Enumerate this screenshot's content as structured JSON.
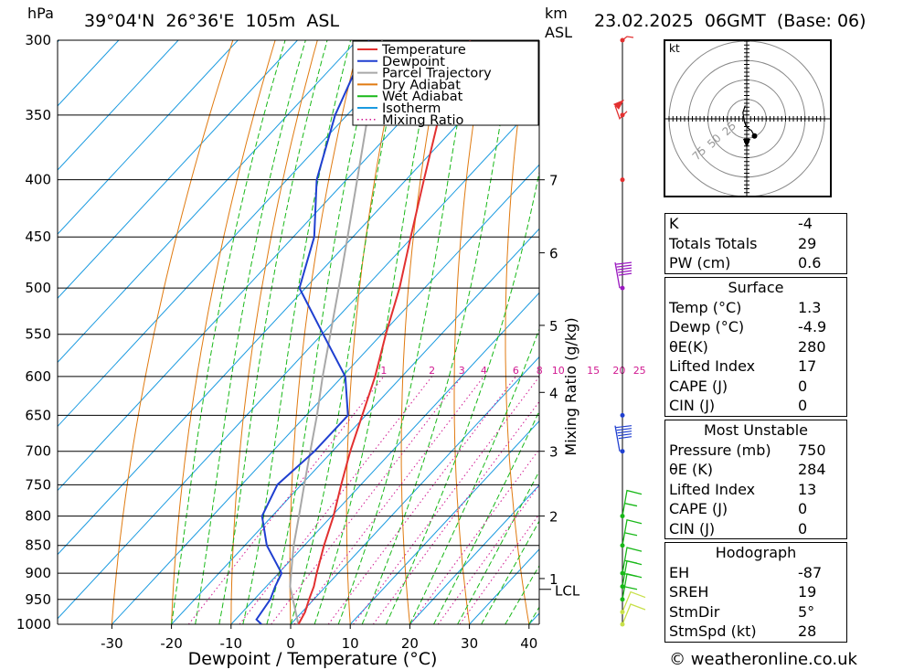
{
  "header": {
    "pressure_unit": "hPa",
    "location": "39°04'N  26°36'E  105m  ASL",
    "km_unit": "km",
    "asl_unit": "ASL",
    "datetime": "23.02.2025  06GMT  (Base: 06)"
  },
  "axes": {
    "xlabel": "Dewpoint / Temperature (°C)",
    "right_label": "Mixing Ratio (g/kg)",
    "pressure_ticks": [
      "300",
      "350",
      "400",
      "450",
      "500",
      "550",
      "600",
      "650",
      "700",
      "750",
      "800",
      "850",
      "900",
      "950",
      "1000"
    ],
    "temp_ticks": [
      "-30",
      "-20",
      "-10",
      "0",
      "10",
      "20",
      "30",
      "40"
    ],
    "km_ticks": [
      "7",
      "6",
      "5",
      "4",
      "3",
      "2",
      "1"
    ],
    "lcl_label": "LCL",
    "mixing_ratio_labels": [
      "1",
      "2",
      "3",
      "4",
      "6",
      "8",
      "10",
      "15",
      "20",
      "25"
    ]
  },
  "legend": [
    {
      "label": "Temperature",
      "color": "#e23030",
      "style": "solid"
    },
    {
      "label": "Dewpoint",
      "color": "#1f3fd0",
      "style": "solid"
    },
    {
      "label": "Parcel Trajectory",
      "color": "#a8a8a8",
      "style": "solid"
    },
    {
      "label": "Dry Adiabat",
      "color": "#e07a10",
      "style": "solid"
    },
    {
      "label": "Wet Adiabat",
      "color": "#18b818",
      "style": "solid"
    },
    {
      "label": "Isotherm",
      "color": "#1a9ae0",
      "style": "solid"
    },
    {
      "label": "Mixing Ratio",
      "color": "#d01890",
      "style": "dotted"
    }
  ],
  "hodograph": {
    "unit_label": "kt",
    "ring_labels": [
      "25",
      "50",
      "75"
    ]
  },
  "indices": {
    "basic": [
      {
        "label": "K",
        "value": "-4"
      },
      {
        "label": "Totals Totals",
        "value": "29"
      },
      {
        "label": "PW (cm)",
        "value": "0.6"
      }
    ],
    "surface": {
      "title": "Surface",
      "rows": [
        {
          "label": "Temp (°C)",
          "value": "1.3"
        },
        {
          "label": "Dewp (°C)",
          "value": "-4.9"
        },
        {
          "label": "θE(K)",
          "value": "280"
        },
        {
          "label": "Lifted Index",
          "value": "17"
        },
        {
          "label": "CAPE (J)",
          "value": "0"
        },
        {
          "label": "CIN (J)",
          "value": "0"
        }
      ]
    },
    "most_unstable": {
      "title": "Most Unstable",
      "rows": [
        {
          "label": "Pressure (mb)",
          "value": "750"
        },
        {
          "label": "θE (K)",
          "value": "284"
        },
        {
          "label": "Lifted Index",
          "value": "13"
        },
        {
          "label": "CAPE (J)",
          "value": "0"
        },
        {
          "label": "CIN (J)",
          "value": "0"
        }
      ]
    },
    "hodograph": {
      "title": "Hodograph",
      "rows": [
        {
          "label": "EH",
          "value": "-87"
        },
        {
          "label": "SREH",
          "value": "19"
        },
        {
          "label": "StmDir",
          "value": "5°"
        },
        {
          "label": "StmSpd (kt)",
          "value": "28"
        }
      ]
    }
  },
  "footer": {
    "credit": "© weatheronline.co.uk"
  },
  "chart_data": {
    "type": "line",
    "subtype": "skew-T log-P sounding",
    "x_unit": "°C",
    "y_unit": "hPa",
    "xlim": [
      -40,
      40
    ],
    "ylim": [
      1000,
      300
    ],
    "temperature": {
      "name": "Temperature",
      "points": [
        [
          1000,
          1.3
        ],
        [
          975,
          0.5
        ],
        [
          950,
          -0.8
        ],
        [
          925,
          -2.0
        ],
        [
          900,
          -3.6
        ],
        [
          850,
          -6.7
        ],
        [
          800,
          -9.7
        ],
        [
          750,
          -13.3
        ],
        [
          700,
          -17.0
        ],
        [
          650,
          -20.6
        ],
        [
          600,
          -24.5
        ],
        [
          550,
          -29.3
        ],
        [
          500,
          -34.2
        ],
        [
          450,
          -40.3
        ],
        [
          400,
          -47.0
        ],
        [
          350,
          -54.5
        ],
        [
          300,
          -61.0
        ]
      ]
    },
    "dewpoint": {
      "name": "Dewpoint",
      "points": [
        [
          1000,
          -4.9
        ],
        [
          990,
          -6.5
        ],
        [
          950,
          -7.3
        ],
        [
          925,
          -8.5
        ],
        [
          900,
          -9.5
        ],
        [
          850,
          -16.3
        ],
        [
          800,
          -21.7
        ],
        [
          750,
          -24.0
        ],
        [
          700,
          -23.0
        ],
        [
          650,
          -23.0
        ],
        [
          600,
          -29.5
        ],
        [
          550,
          -39.8
        ],
        [
          500,
          -51.0
        ],
        [
          450,
          -56.5
        ],
        [
          400,
          -65.0
        ],
        [
          350,
          -72.0
        ],
        [
          300,
          -78.0
        ]
      ]
    },
    "parcel": {
      "name": "Parcel Trajectory",
      "points": [
        [
          1000,
          1.3
        ],
        [
          950,
          -3.5
        ],
        [
          925,
          -6.0
        ],
        [
          900,
          -7.9
        ],
        [
          850,
          -11.8
        ],
        [
          800,
          -15.5
        ],
        [
          750,
          -19.5
        ],
        [
          700,
          -23.7
        ],
        [
          650,
          -28.2
        ],
        [
          600,
          -33.3
        ],
        [
          550,
          -38.6
        ],
        [
          500,
          -44.4
        ],
        [
          450,
          -50.9
        ],
        [
          400,
          -58.2
        ],
        [
          350,
          -66.5
        ],
        [
          300,
          -75.8
        ]
      ]
    },
    "lcl_pressure": 920,
    "km_levels": [
      [
        7,
        400
      ],
      [
        6,
        465
      ],
      [
        5,
        540
      ],
      [
        4,
        620
      ],
      [
        3,
        700
      ],
      [
        2,
        800
      ],
      [
        1,
        910
      ]
    ],
    "mixing_ratios": [
      1,
      2,
      3,
      4,
      6,
      8,
      10,
      15,
      20,
      25
    ],
    "hodograph_points": [
      [
        -2,
        17
      ],
      [
        -3,
        14
      ],
      [
        -5,
        8
      ],
      [
        -3,
        -3
      ],
      [
        -2,
        -6
      ],
      [
        -1,
        -9
      ],
      [
        3,
        -13
      ],
      [
        6,
        -15
      ],
      [
        10,
        -22
      ]
    ],
    "wind_levels": [
      1000,
      975,
      950,
      925,
      900,
      850,
      800,
      700,
      650,
      500,
      400,
      350,
      300
    ]
  }
}
